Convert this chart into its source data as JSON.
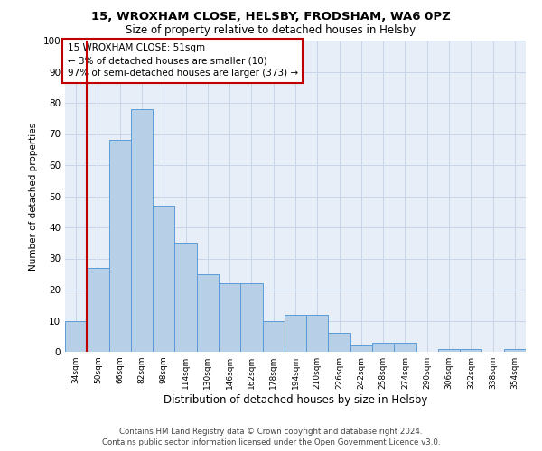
{
  "title1": "15, WROXHAM CLOSE, HELSBY, FRODSHAM, WA6 0PZ",
  "title2": "Size of property relative to detached houses in Helsby",
  "xlabel": "Distribution of detached houses by size in Helsby",
  "ylabel": "Number of detached properties",
  "categories": [
    "34sqm",
    "50sqm",
    "66sqm",
    "82sqm",
    "98sqm",
    "114sqm",
    "130sqm",
    "146sqm",
    "162sqm",
    "178sqm",
    "194sqm",
    "210sqm",
    "226sqm",
    "242sqm",
    "258sqm",
    "274sqm",
    "290sqm",
    "306sqm",
    "322sqm",
    "338sqm",
    "354sqm"
  ],
  "values": [
    10,
    27,
    68,
    78,
    47,
    35,
    25,
    22,
    22,
    10,
    12,
    12,
    6,
    2,
    3,
    3,
    0,
    1,
    1,
    0,
    1
  ],
  "bar_color": "#b8cfe8",
  "bar_edge_color": "#5b9bd5",
  "highlight_bar_index": 1,
  "highlight_color": "#c00000",
  "annotation_lines": [
    "15 WROXHAM CLOSE: 51sqm",
    "← 3% of detached houses are smaller (10)",
    "97% of semi-detached houses are larger (373) →"
  ],
  "annotation_box_color": "#ffffff",
  "annotation_box_edge_color": "#c00000",
  "ylim": [
    0,
    100
  ],
  "yticks": [
    0,
    10,
    20,
    30,
    40,
    50,
    60,
    70,
    80,
    90,
    100
  ],
  "grid_color": "#c8d4e8",
  "bg_color": "#e8eef8",
  "footer_line1": "Contains HM Land Registry data © Crown copyright and database right 2024.",
  "footer_line2": "Contains public sector information licensed under the Open Government Licence v3.0."
}
